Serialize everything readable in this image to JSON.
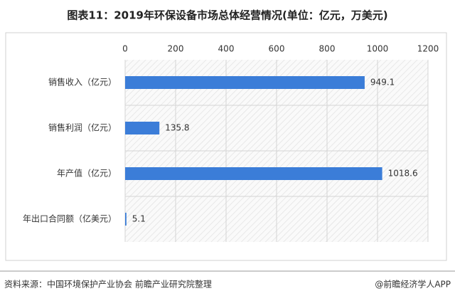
{
  "chart_data": {
    "type": "bar",
    "orientation": "horizontal",
    "title": "图表11：2019年环保设备市场总体经营情况(单位：亿元，万美元)",
    "categories": [
      "销售收入（亿元）",
      "销售利润（亿元）",
      "年产值（亿元）",
      "年出口合同额（亿美元）"
    ],
    "values": [
      949.1,
      135.8,
      1018.6,
      5.1
    ],
    "color": "#3b7dd8",
    "xlim": [
      0,
      1200
    ],
    "xticks": [
      0,
      200,
      400,
      600,
      800,
      1000,
      1200
    ],
    "grid": true,
    "source": "资料来源：中国环境保护产业协会 前瞻产业研究院整理",
    "credit": "@前瞻经济学人APP"
  }
}
